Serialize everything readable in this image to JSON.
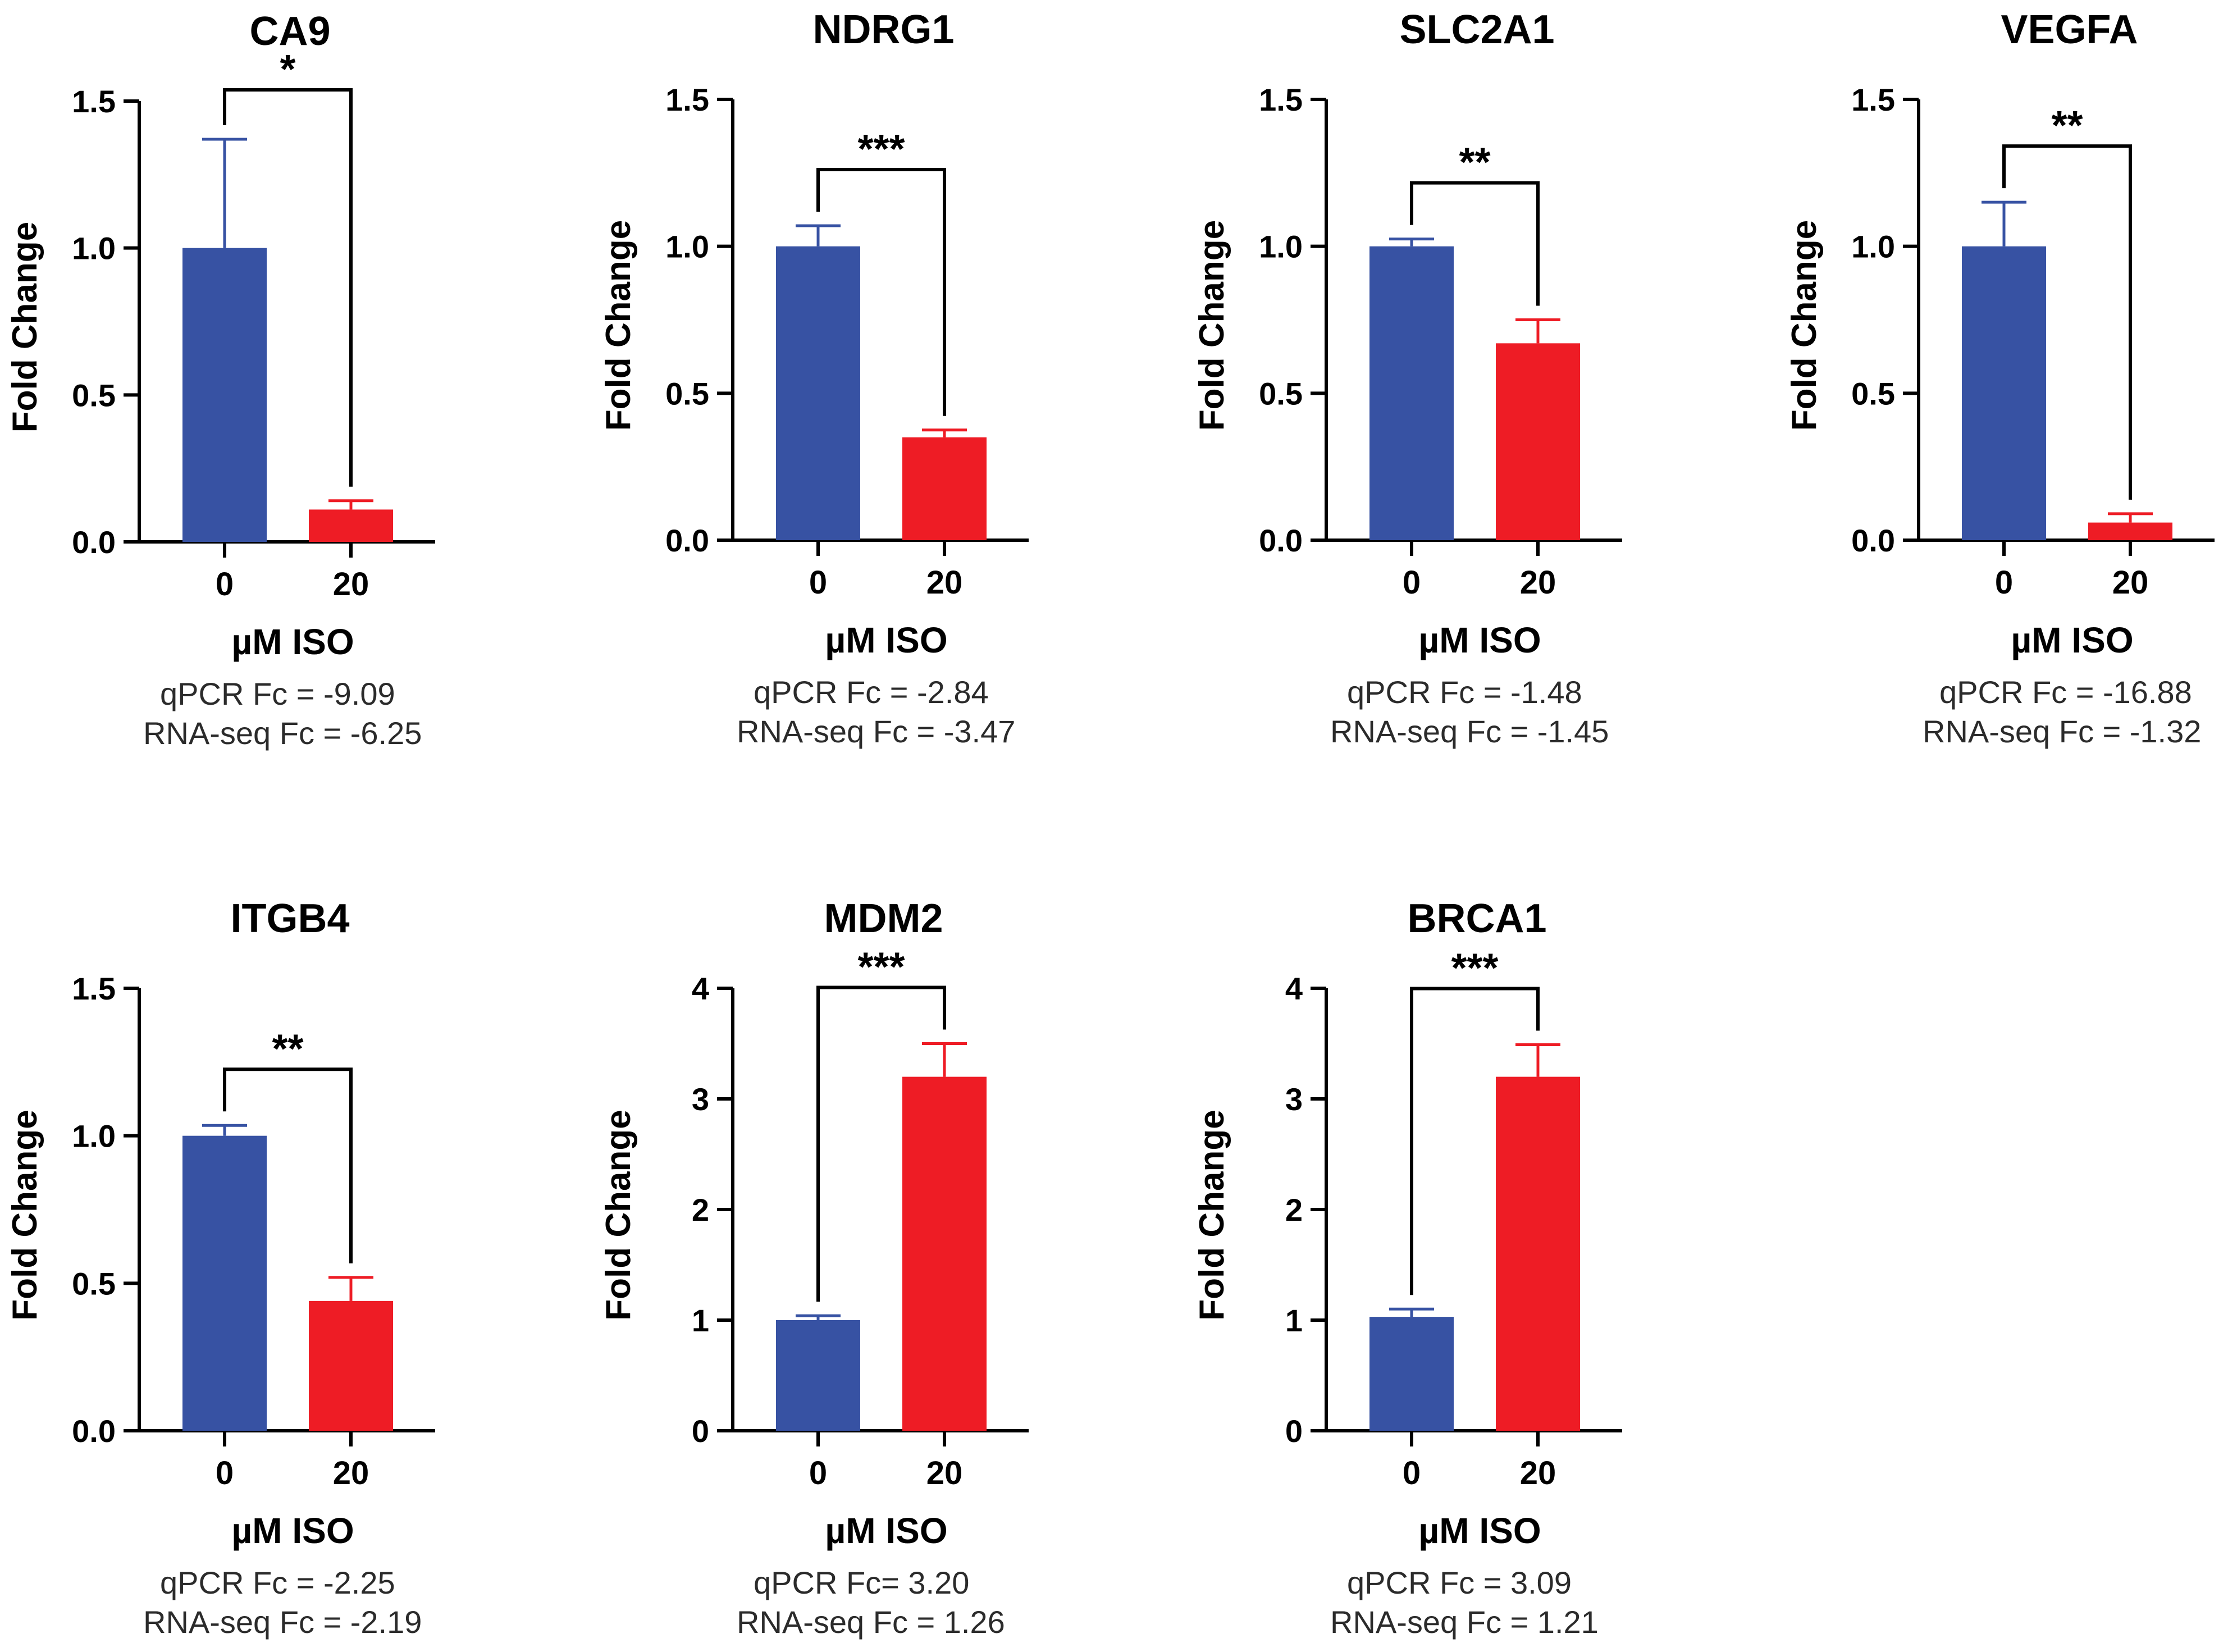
{
  "chart_data": [
    {
      "type": "bar",
      "title": "CA9",
      "ylabel": "Fold Change",
      "xlabel": "µM ISO",
      "categories": [
        "0",
        "20"
      ],
      "values": [
        1.0,
        0.11
      ],
      "errors": [
        0.37,
        0.03
      ],
      "ylim": [
        0,
        1.5
      ],
      "yticks": [
        "0.0",
        "0.5",
        "1.0",
        "1.5"
      ],
      "significance": "*",
      "notes": [
        "qPCR Fc = -9.09",
        "RNA-seq Fc = -6.25"
      ]
    },
    {
      "type": "bar",
      "title": "NDRG1",
      "ylabel": "Fold Change",
      "xlabel": "µM ISO",
      "categories": [
        "0",
        "20"
      ],
      "values": [
        1.0,
        0.35
      ],
      "errors": [
        0.07,
        0.025
      ],
      "ylim": [
        0,
        1.5
      ],
      "yticks": [
        "0.0",
        "0.5",
        "1.0",
        "1.5"
      ],
      "significance": "***",
      "notes": [
        "qPCR Fc = -2.84",
        "RNA-seq Fc = -3.47"
      ]
    },
    {
      "type": "bar",
      "title": "SLC2A1",
      "ylabel": "Fold Change",
      "xlabel": "µM ISO",
      "categories": [
        "0",
        "20"
      ],
      "values": [
        1.0,
        0.67
      ],
      "errors": [
        0.025,
        0.08
      ],
      "ylim": [
        0,
        1.5
      ],
      "yticks": [
        "0.0",
        "0.5",
        "1.0",
        "1.5"
      ],
      "significance": "**",
      "notes": [
        "qPCR Fc = -1.48",
        "RNA-seq Fc = -1.45"
      ]
    },
    {
      "type": "bar",
      "title": "VEGFA",
      "ylabel": "Fold Change",
      "xlabel": "µM ISO",
      "categories": [
        "0",
        "20"
      ],
      "values": [
        1.0,
        0.06
      ],
      "errors": [
        0.15,
        0.03
      ],
      "ylim": [
        0,
        1.5
      ],
      "yticks": [
        "0.0",
        "0.5",
        "1.0",
        "1.5"
      ],
      "significance": "**",
      "notes": [
        "qPCR Fc = -16.88",
        "RNA-seq Fc = -1.32"
      ]
    },
    {
      "type": "bar",
      "title": "ITGB4",
      "ylabel": "Fold Change",
      "xlabel": "µM ISO",
      "categories": [
        "0",
        "20"
      ],
      "values": [
        1.0,
        0.44
      ],
      "errors": [
        0.035,
        0.08
      ],
      "ylim": [
        0,
        1.5
      ],
      "yticks": [
        "0.0",
        "0.5",
        "1.0",
        "1.5"
      ],
      "significance": "**",
      "notes": [
        "qPCR Fc = -2.25",
        "RNA-seq Fc = -2.19"
      ]
    },
    {
      "type": "bar",
      "title": "MDM2",
      "ylabel": "Fold Change",
      "xlabel": "µM ISO",
      "categories": [
        "0",
        "20"
      ],
      "values": [
        1.0,
        3.2
      ],
      "errors": [
        0.04,
        0.3
      ],
      "ylim": [
        0,
        4
      ],
      "yticks": [
        "0",
        "1",
        "2",
        "3",
        "4"
      ],
      "significance": "***",
      "notes": [
        "qPCR Fc= 3.20",
        "RNA-seq Fc = 1.26"
      ]
    },
    {
      "type": "bar",
      "title": "BRCA1",
      "ylabel": "Fold Change",
      "xlabel": "µM ISO",
      "categories": [
        "0",
        "20"
      ],
      "values": [
        1.03,
        3.2
      ],
      "errors": [
        0.07,
        0.29
      ],
      "ylim": [
        0,
        4
      ],
      "yticks": [
        "0",
        "1",
        "2",
        "3",
        "4"
      ],
      "significance": "***",
      "notes": [
        "qPCR Fc = 3.09",
        "RNA-seq Fc = 1.21"
      ]
    }
  ],
  "colors": {
    "control": "#3752a3",
    "treated": "#ee1c25",
    "axis": "#000000"
  }
}
